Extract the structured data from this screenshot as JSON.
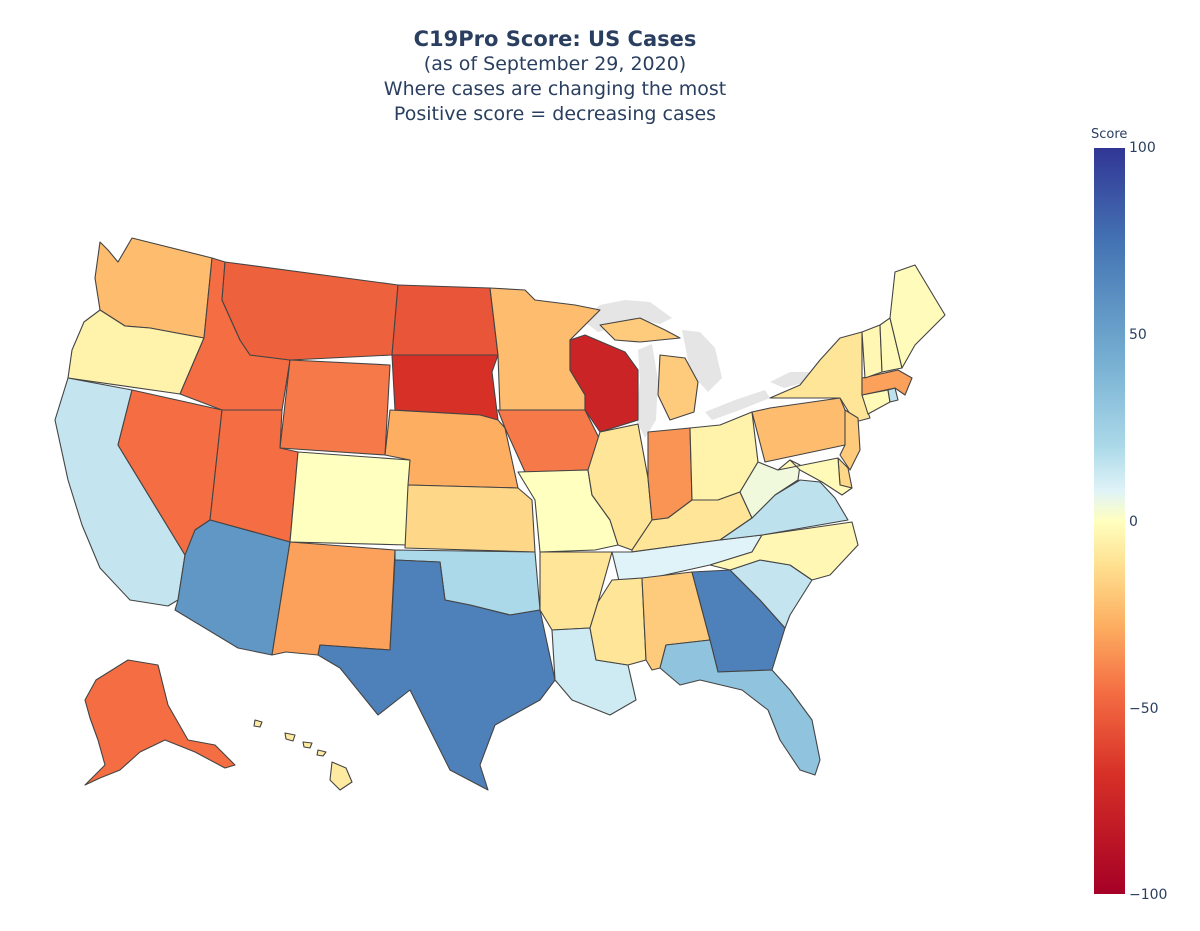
{
  "title": {
    "main": "C19Pro Score: US Cases",
    "line2": "(as of September 29, 2020)",
    "line3": "Where cases are changing the most",
    "line4": "Positive score = decreasing cases"
  },
  "colorbar": {
    "title": "Score",
    "ticks": [
      "100",
      "50",
      "0",
      "−50",
      "−100"
    ],
    "range": [
      -100,
      100
    ],
    "colorscale": "RdYlBu"
  },
  "colors": {
    "land_outline": "#444444",
    "lakes": "#e5e5e5"
  },
  "chart_data": {
    "type": "choropleth",
    "scope": "usa",
    "legend": "colorbar-right",
    "states": [
      {
        "state": "WA",
        "score": -25
      },
      {
        "state": "OR",
        "score": -5
      },
      {
        "state": "CA",
        "score": 18
      },
      {
        "state": "NV",
        "score": -55
      },
      {
        "state": "ID",
        "score": -55
      },
      {
        "state": "MT",
        "score": -60
      },
      {
        "state": "WY",
        "score": -50
      },
      {
        "state": "UT",
        "score": -55
      },
      {
        "state": "AZ",
        "score": 55
      },
      {
        "state": "CO",
        "score": 0
      },
      {
        "state": "NM",
        "score": -35
      },
      {
        "state": "ND",
        "score": -65
      },
      {
        "state": "SD",
        "score": -80
      },
      {
        "state": "NE",
        "score": -30
      },
      {
        "state": "KS",
        "score": -15
      },
      {
        "state": "OK",
        "score": 25
      },
      {
        "state": "TX",
        "score": 65
      },
      {
        "state": "MN",
        "score": -25
      },
      {
        "state": "IA",
        "score": -50
      },
      {
        "state": "MO",
        "score": 0
      },
      {
        "state": "AR",
        "score": -10
      },
      {
        "state": "LA",
        "score": 15
      },
      {
        "state": "WI",
        "score": -85
      },
      {
        "state": "IL",
        "score": -10
      },
      {
        "state": "MI",
        "score": -20
      },
      {
        "state": "IN",
        "score": -40
      },
      {
        "state": "OH",
        "score": -5
      },
      {
        "state": "KY",
        "score": -10
      },
      {
        "state": "TN",
        "score": 10
      },
      {
        "state": "MS",
        "score": -10
      },
      {
        "state": "AL",
        "score": -20
      },
      {
        "state": "GA",
        "score": 65
      },
      {
        "state": "FL",
        "score": 35
      },
      {
        "state": "SC",
        "score": 18
      },
      {
        "state": "NC",
        "score": -3
      },
      {
        "state": "VA",
        "score": 20
      },
      {
        "state": "WV",
        "score": 5
      },
      {
        "state": "PA",
        "score": -25
      },
      {
        "state": "NY",
        "score": -10
      },
      {
        "state": "NJ",
        "score": -20
      },
      {
        "state": "DE",
        "score": -15
      },
      {
        "state": "MD",
        "score": -2
      },
      {
        "state": "CT",
        "score": -2
      },
      {
        "state": "RI",
        "score": 20
      },
      {
        "state": "MA",
        "score": -35
      },
      {
        "state": "VT",
        "score": -3
      },
      {
        "state": "NH",
        "score": -2
      },
      {
        "state": "ME",
        "score": -1
      },
      {
        "state": "AK",
        "score": -55
      },
      {
        "state": "HI",
        "score": -8
      }
    ]
  }
}
